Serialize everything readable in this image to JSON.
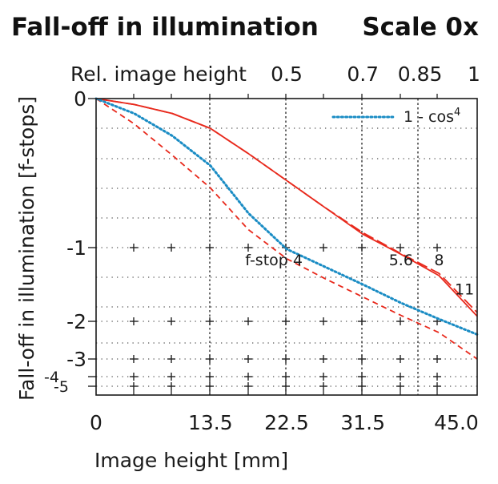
{
  "header": {
    "title": "Fall-off in illumination",
    "scale_label": "Scale 0x"
  },
  "chart_data": {
    "type": "line",
    "title": "Fall-off in illumination",
    "xlabel": "Image height [mm]",
    "ylabel": "Fall-off in illumination [f-stops]",
    "xlim": [
      0,
      45
    ],
    "y_stop_ticks": [
      0,
      -1,
      -2,
      -3,
      -4,
      -5
    ],
    "y_tick_labels": [
      "0",
      "-1",
      "-2",
      "-3",
      "-4",
      "-5"
    ],
    "x_ticks": [
      0,
      13.5,
      22.5,
      31.5,
      45
    ],
    "x_tick_labels": [
      "0",
      "13.5",
      "22.5",
      "31.5",
      "45.0"
    ],
    "top_axis": {
      "label": "Rel. image height",
      "ticks": [
        {
          "label": "0.5",
          "x": 22.5
        },
        {
          "label": "0.7",
          "x": 31.5
        },
        {
          "label": "0.85",
          "x": 38.25
        },
        {
          "label": "1",
          "x": 45
        }
      ]
    },
    "grid": true,
    "legend_position": "top-right",
    "series": [
      {
        "name": "f-stop 4",
        "style": "dashed",
        "color": "#e8291c",
        "x": [
          0,
          4.5,
          9,
          13.5,
          18,
          22.5,
          27,
          31.5,
          36,
          40.5,
          45
        ],
        "y": [
          0,
          -0.17,
          -0.38,
          -0.6,
          -0.88,
          -1.15,
          -1.42,
          -1.67,
          -1.92,
          -2.3,
          -3.0
        ]
      },
      {
        "name": "5.6",
        "style": "solid",
        "color": "#e8291c",
        "x": [
          0,
          4.5,
          9,
          13.5,
          18,
          22.5,
          27,
          31.5,
          36,
          40.5,
          45
        ],
        "y": [
          0,
          -0.04,
          -0.1,
          -0.2,
          -0.37,
          -0.55,
          -0.73,
          -0.91,
          -1.09,
          -1.38,
          -1.93
        ]
      },
      {
        "name": "11",
        "style": "long-dash",
        "color": "#e8291c",
        "x": [
          0,
          4.5,
          9,
          13.5,
          18,
          22.5,
          27,
          31.5,
          36,
          40.5,
          45
        ],
        "y": [
          0,
          -0.04,
          -0.1,
          -0.2,
          -0.37,
          -0.55,
          -0.73,
          -0.9,
          -1.08,
          -1.35,
          -1.88
        ]
      },
      {
        "name": "1 - cos⁴",
        "style": "dotted",
        "color": "#1a8cc4",
        "x": [
          0,
          4.5,
          9,
          13.5,
          18,
          22.5,
          27,
          31.5,
          36,
          40.5,
          45
        ],
        "y": [
          0,
          -0.1,
          -0.25,
          -0.45,
          -0.77,
          -1.02,
          -1.26,
          -1.5,
          -1.75,
          -1.97,
          -2.35
        ]
      }
    ],
    "annotations": [
      {
        "text": "f-stop 4",
        "x": 21,
        "y": -1.15
      },
      {
        "text": "5.6",
        "x": 36,
        "y": -1.15
      },
      {
        "text": "8",
        "x": 40.5,
        "y": -1.15
      },
      {
        "text": "11",
        "x": 43.5,
        "y": -1.55
      }
    ],
    "legend": {
      "text": "1 - cos",
      "superscript": "4"
    }
  }
}
